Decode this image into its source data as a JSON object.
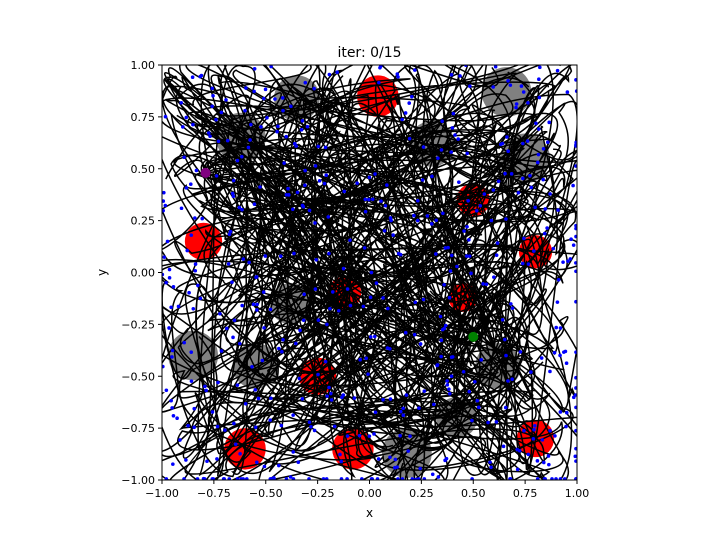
{
  "chart_data": {
    "type": "scatter",
    "title": "iter: 0/15",
    "xlabel": "x",
    "ylabel": "y",
    "xlim": [
      -1.0,
      1.0
    ],
    "ylim": [
      -1.0,
      1.0
    ],
    "grid": false,
    "xticks": [
      -1.0,
      -0.75,
      -0.5,
      -0.25,
      0.0,
      0.25,
      0.5,
      0.75,
      1.0
    ],
    "xtick_labels": [
      "−1.00",
      "−0.75",
      "−0.50",
      "−0.25",
      "0.00",
      "0.25",
      "0.50",
      "0.75",
      "1.00"
    ],
    "yticks": [
      -1.0,
      -0.75,
      -0.5,
      -0.25,
      0.0,
      0.25,
      0.5,
      0.75,
      1.0
    ],
    "ytick_labels": [
      "−1.00",
      "−0.75",
      "−0.50",
      "−0.25",
      "0.00",
      "0.25",
      "0.50",
      "0.75",
      "1.00"
    ],
    "colors": {
      "red_obstacle": "#ff0000",
      "gray_obstacle": "#808080",
      "sample_point": "#0000ff",
      "trajectory": "#000000",
      "start": "#800080",
      "goal": "#008000"
    },
    "red_obstacles": [
      {
        "x": 0.04,
        "y": 0.85,
        "r": 0.1
      },
      {
        "x": 0.5,
        "y": 0.35,
        "r": 0.08
      },
      {
        "x": -0.8,
        "y": 0.15,
        "r": 0.09
      },
      {
        "x": 0.8,
        "y": 0.1,
        "r": 0.08
      },
      {
        "x": -0.12,
        "y": -0.1,
        "r": 0.08
      },
      {
        "x": 0.45,
        "y": -0.12,
        "r": 0.07
      },
      {
        "x": -0.25,
        "y": -0.5,
        "r": 0.09
      },
      {
        "x": -0.6,
        "y": -0.85,
        "r": 0.1
      },
      {
        "x": -0.08,
        "y": -0.85,
        "r": 0.1
      },
      {
        "x": 0.8,
        "y": -0.8,
        "r": 0.09
      }
    ],
    "gray_obstacles": [
      {
        "x": -0.35,
        "y": 0.84,
        "r": 0.11
      },
      {
        "x": 0.66,
        "y": 0.87,
        "r": 0.12
      },
      {
        "x": -0.62,
        "y": 0.65,
        "r": 0.12
      },
      {
        "x": 0.75,
        "y": 0.55,
        "r": 0.12
      },
      {
        "x": 0.3,
        "y": 0.62,
        "r": 0.11
      },
      {
        "x": -0.85,
        "y": -0.4,
        "r": 0.12
      },
      {
        "x": -0.55,
        "y": -0.45,
        "r": 0.11
      },
      {
        "x": 0.62,
        "y": -0.45,
        "r": 0.11
      },
      {
        "x": 0.42,
        "y": -0.7,
        "r": 0.1
      },
      {
        "x": 0.18,
        "y": -0.87,
        "r": 0.12
      },
      {
        "x": -0.38,
        "y": -0.15,
        "r": 0.1
      }
    ],
    "start": {
      "x": -0.79,
      "y": 0.48
    },
    "goal": {
      "x": 0.5,
      "y": -0.31
    }
  }
}
